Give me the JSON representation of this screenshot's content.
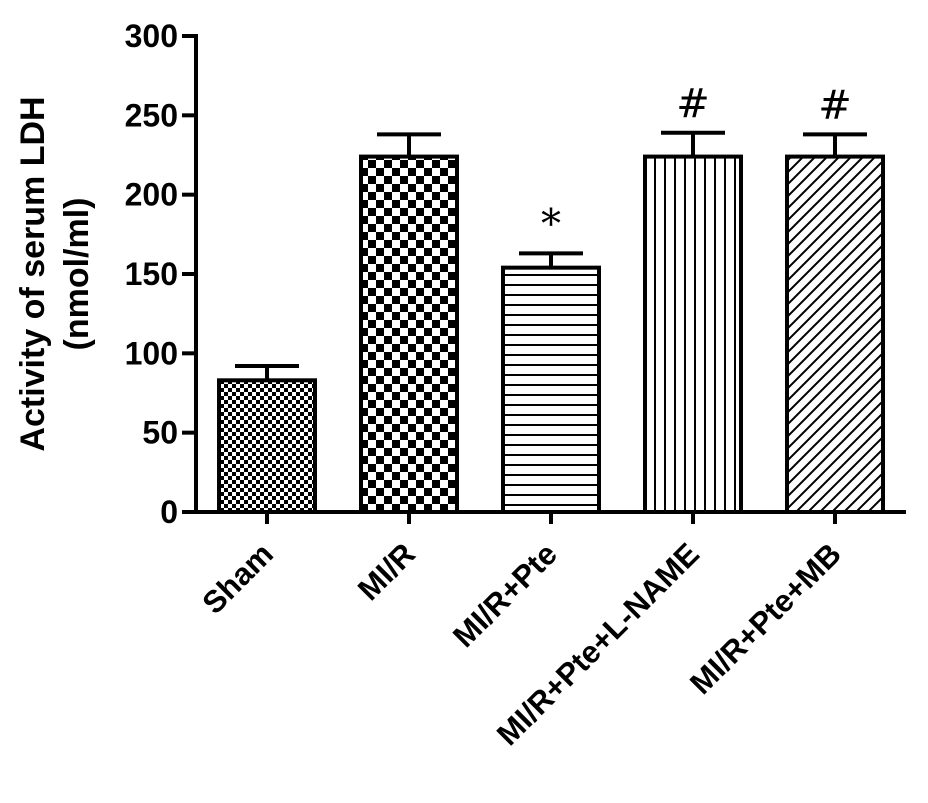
{
  "chart_data": {
    "type": "bar",
    "categories": [
      "Sham",
      "MI/R",
      "MI/R+Pte",
      "MI/R+Pte+L-NAME",
      "MI/R+Pte+MB"
    ],
    "values": [
      83,
      224,
      154,
      224,
      224
    ],
    "errors": [
      9,
      14,
      9,
      15,
      14
    ],
    "annotations": [
      "",
      "",
      "*",
      "#",
      "#"
    ],
    "patterns": [
      "fine-checker",
      "coarse-checker",
      "horizontal-lines",
      "vertical-lines",
      "diagonal-lines"
    ],
    "ylabel_line1": "Activity of serum LDH",
    "ylabel_line2": "(nmol/ml)",
    "xlabel": "",
    "title": "",
    "ylim": [
      0,
      300
    ],
    "yticks": [
      0,
      50,
      100,
      150,
      200,
      250,
      300
    ],
    "grid": false,
    "colors": {
      "bar_fill": "#ffffff",
      "pattern": "#000000",
      "axis": "#000000"
    }
  }
}
